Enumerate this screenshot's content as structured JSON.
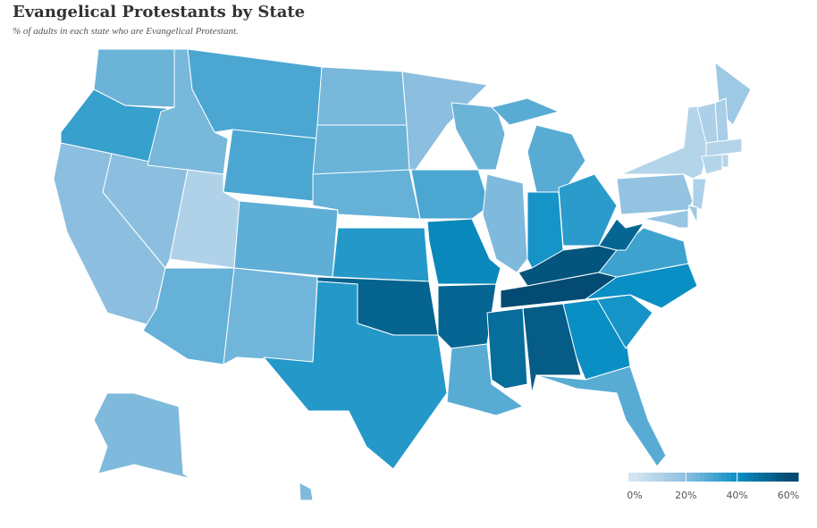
{
  "title": "Evangelical Protestants by State",
  "subtitle": "% of adults in each state who are Evangelical Protestant.",
  "map": {
    "type": "choropleth",
    "values": [
      25,
      33,
      20,
      20,
      23,
      30,
      30,
      10,
      26,
      27,
      24,
      23,
      25,
      26,
      36,
      53,
      36,
      20,
      30,
      42,
      52,
      28,
      25,
      22,
      28,
      38,
      35,
      57,
      60,
      50,
      55,
      40,
      28,
      38,
      40,
      32,
      52,
      18,
      9,
      15,
      12,
      11,
      9,
      9,
      9,
      11,
      15,
      17,
      22,
      22
    ],
    "colors": [
      "#d4e5f2",
      "#8cbfdf",
      "#0a8fc4",
      "#034b72"
    ],
    "legend_ticks": [
      {
        "value": 0,
        "label": "0%"
      },
      {
        "value": 20,
        "label": "20%"
      },
      {
        "value": 40,
        "label": "40%"
      },
      {
        "value": 60,
        "label": "60%"
      }
    ]
  }
}
